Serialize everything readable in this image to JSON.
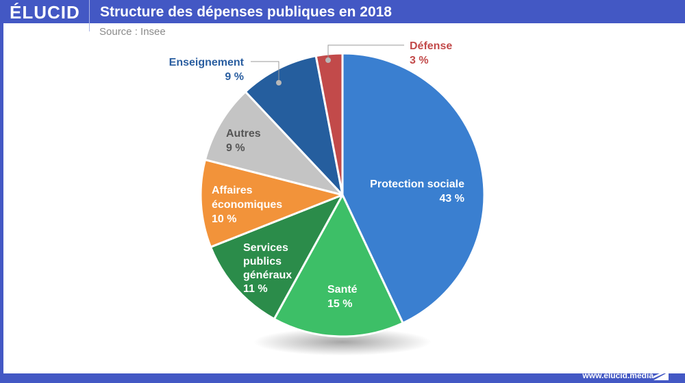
{
  "header": {
    "logo": "ÉLUCID",
    "title": "Structure des dépenses publiques en 2018"
  },
  "source": "Source : Insee",
  "footer": {
    "url": "www.elucid.media"
  },
  "chart_data": {
    "type": "pie",
    "title": "Structure des dépenses publiques en 2018",
    "subtitle": "Source : Insee",
    "start": "top",
    "direction": "clockwise",
    "unit": "%",
    "slices": [
      {
        "name": "Protection sociale",
        "value": 43,
        "label": "43 %",
        "color": "#3a7fd0",
        "text_color": "#ffffff",
        "label_lines": [
          "Protection sociale"
        ]
      },
      {
        "name": "Santé",
        "value": 15,
        "label": "15 %",
        "color": "#3dbf67",
        "text_color": "#ffffff",
        "label_lines": [
          "Santé"
        ]
      },
      {
        "name": "Services publics généraux",
        "value": 11,
        "label": "11 %",
        "color": "#2b8c4a",
        "text_color": "#ffffff",
        "label_lines": [
          "Services",
          "publics",
          "généraux"
        ]
      },
      {
        "name": "Affaires économiques",
        "value": 10,
        "label": "10 %",
        "color": "#f2933a",
        "text_color": "#ffffff",
        "label_lines": [
          "Affaires",
          "économiques"
        ]
      },
      {
        "name": "Autres",
        "value": 9,
        "label": "9 %",
        "color": "#c4c4c4",
        "text_color": "#555555",
        "label_lines": [
          "Autres"
        ]
      },
      {
        "name": "Enseignement",
        "value": 9,
        "label": "9 %",
        "color": "#255e9e",
        "text_color": "#2a5ea0",
        "label_lines": [
          "Enseignement"
        ],
        "external": true
      },
      {
        "name": "Défense",
        "value": 3,
        "label": "3 %",
        "color": "#c24a4a",
        "text_color": "#c24a4a",
        "label_lines": [
          "Défense"
        ],
        "external": true
      }
    ]
  }
}
